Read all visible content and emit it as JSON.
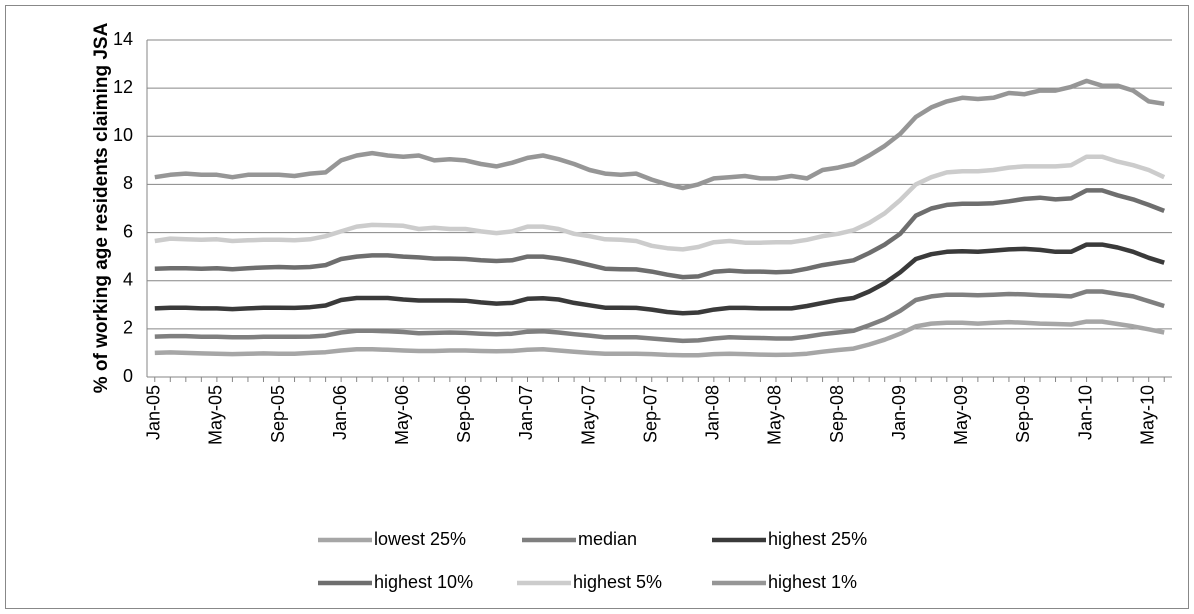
{
  "chart_data": {
    "type": "line",
    "y_label": "% of working age residents claiming JSA",
    "categories": [
      "Jan-05",
      null,
      null,
      null,
      "May-05",
      null,
      null,
      null,
      "Sep-05",
      null,
      null,
      null,
      "Jan-06",
      null,
      null,
      null,
      "May-06",
      null,
      null,
      null,
      "Sep-06",
      null,
      null,
      null,
      "Jan-07",
      null,
      null,
      null,
      "May-07",
      null,
      null,
      null,
      "Sep-07",
      null,
      null,
      null,
      "Jan-08",
      null,
      null,
      null,
      "May-08",
      null,
      null,
      null,
      "Sep-08",
      null,
      null,
      null,
      "Jan-09",
      null,
      null,
      null,
      "May-09",
      null,
      null,
      null,
      "Sep-09",
      null,
      null,
      null,
      "Jan-10",
      null,
      null,
      null,
      "May-10",
      null
    ],
    "series": [
      {
        "name": "lowest 25%",
        "color": "#a6a6a6",
        "values": [
          1.0,
          1.02,
          1.0,
          0.98,
          0.97,
          0.95,
          0.97,
          0.98,
          0.97,
          0.97,
          1.0,
          1.03,
          1.1,
          1.15,
          1.15,
          1.13,
          1.1,
          1.08,
          1.08,
          1.1,
          1.1,
          1.08,
          1.07,
          1.08,
          1.13,
          1.15,
          1.1,
          1.05,
          1.0,
          0.97,
          0.97,
          0.97,
          0.95,
          0.92,
          0.9,
          0.9,
          0.95,
          0.97,
          0.95,
          0.93,
          0.92,
          0.93,
          0.97,
          1.05,
          1.12,
          1.18,
          1.35,
          1.55,
          1.8,
          2.1,
          2.22,
          2.25,
          2.25,
          2.22,
          2.25,
          2.28,
          2.25,
          2.22,
          2.2,
          2.18,
          2.3,
          2.3,
          2.2,
          2.1,
          1.98,
          1.85
        ]
      },
      {
        "name": "median",
        "color": "#7f7f7f",
        "values": [
          1.68,
          1.7,
          1.7,
          1.67,
          1.67,
          1.65,
          1.65,
          1.67,
          1.67,
          1.67,
          1.68,
          1.72,
          1.85,
          1.92,
          1.92,
          1.9,
          1.87,
          1.82,
          1.83,
          1.85,
          1.83,
          1.8,
          1.78,
          1.8,
          1.88,
          1.9,
          1.85,
          1.78,
          1.72,
          1.65,
          1.65,
          1.65,
          1.6,
          1.55,
          1.5,
          1.52,
          1.6,
          1.65,
          1.63,
          1.62,
          1.6,
          1.6,
          1.68,
          1.78,
          1.85,
          1.92,
          2.15,
          2.4,
          2.75,
          3.2,
          3.35,
          3.42,
          3.42,
          3.4,
          3.42,
          3.45,
          3.43,
          3.4,
          3.38,
          3.35,
          3.55,
          3.55,
          3.45,
          3.35,
          3.15,
          2.95
        ]
      },
      {
        "name": "highest 25%",
        "color": "#3a3a3a",
        "values": [
          2.85,
          2.88,
          2.88,
          2.85,
          2.85,
          2.82,
          2.85,
          2.88,
          2.88,
          2.87,
          2.9,
          2.97,
          3.2,
          3.28,
          3.28,
          3.28,
          3.22,
          3.18,
          3.18,
          3.18,
          3.17,
          3.1,
          3.05,
          3.08,
          3.25,
          3.27,
          3.22,
          3.08,
          2.98,
          2.88,
          2.88,
          2.87,
          2.8,
          2.7,
          2.65,
          2.68,
          2.8,
          2.87,
          2.87,
          2.85,
          2.85,
          2.85,
          2.95,
          3.08,
          3.2,
          3.28,
          3.55,
          3.9,
          4.35,
          4.9,
          5.1,
          5.2,
          5.22,
          5.2,
          5.25,
          5.3,
          5.32,
          5.28,
          5.2,
          5.2,
          5.5,
          5.5,
          5.38,
          5.2,
          4.95,
          4.75
        ]
      },
      {
        "name": "highest 10%",
        "color": "#6e6e6e",
        "values": [
          4.5,
          4.52,
          4.52,
          4.5,
          4.52,
          4.48,
          4.52,
          4.55,
          4.57,
          4.55,
          4.57,
          4.65,
          4.9,
          5.0,
          5.05,
          5.05,
          5.0,
          4.97,
          4.92,
          4.92,
          4.9,
          4.85,
          4.82,
          4.85,
          5.0,
          5.0,
          4.92,
          4.8,
          4.65,
          4.5,
          4.48,
          4.47,
          4.38,
          4.25,
          4.15,
          4.18,
          4.37,
          4.42,
          4.38,
          4.38,
          4.35,
          4.38,
          4.5,
          4.65,
          4.75,
          4.85,
          5.15,
          5.5,
          5.95,
          6.7,
          7.0,
          7.15,
          7.2,
          7.2,
          7.22,
          7.3,
          7.4,
          7.45,
          7.38,
          7.42,
          7.75,
          7.75,
          7.55,
          7.38,
          7.15,
          6.9
        ]
      },
      {
        "name": "highest 5%",
        "color": "#cccccc",
        "values": [
          5.65,
          5.75,
          5.72,
          5.7,
          5.72,
          5.65,
          5.68,
          5.7,
          5.7,
          5.68,
          5.72,
          5.85,
          6.05,
          6.25,
          6.32,
          6.3,
          6.28,
          6.15,
          6.2,
          6.15,
          6.15,
          6.05,
          5.98,
          6.05,
          6.25,
          6.25,
          6.15,
          5.95,
          5.85,
          5.72,
          5.7,
          5.65,
          5.45,
          5.35,
          5.3,
          5.4,
          5.6,
          5.65,
          5.58,
          5.58,
          5.6,
          5.6,
          5.7,
          5.85,
          5.95,
          6.1,
          6.4,
          6.8,
          7.35,
          8.0,
          8.3,
          8.5,
          8.55,
          8.55,
          8.6,
          8.7,
          8.75,
          8.75,
          8.75,
          8.8,
          9.15,
          9.15,
          8.95,
          8.8,
          8.6,
          8.3
        ]
      },
      {
        "name": "highest 1%",
        "color": "#969696",
        "values": [
          8.3,
          8.4,
          8.45,
          8.4,
          8.4,
          8.3,
          8.4,
          8.4,
          8.4,
          8.35,
          8.45,
          8.5,
          9.0,
          9.2,
          9.3,
          9.2,
          9.15,
          9.2,
          9.0,
          9.05,
          9.0,
          8.85,
          8.75,
          8.9,
          9.1,
          9.2,
          9.05,
          8.85,
          8.6,
          8.45,
          8.4,
          8.45,
          8.2,
          8.0,
          7.85,
          8.0,
          8.25,
          8.3,
          8.35,
          8.25,
          8.25,
          8.35,
          8.25,
          8.6,
          8.7,
          8.85,
          9.2,
          9.6,
          10.1,
          10.8,
          11.2,
          11.45,
          11.6,
          11.55,
          11.6,
          11.8,
          11.75,
          11.9,
          11.9,
          12.05,
          12.3,
          12.1,
          12.1,
          11.9,
          11.45,
          11.35
        ]
      }
    ],
    "ylim": [
      0,
      14
    ],
    "yticks": [
      0,
      2,
      4,
      6,
      8,
      10,
      12,
      14
    ],
    "grid": true
  }
}
